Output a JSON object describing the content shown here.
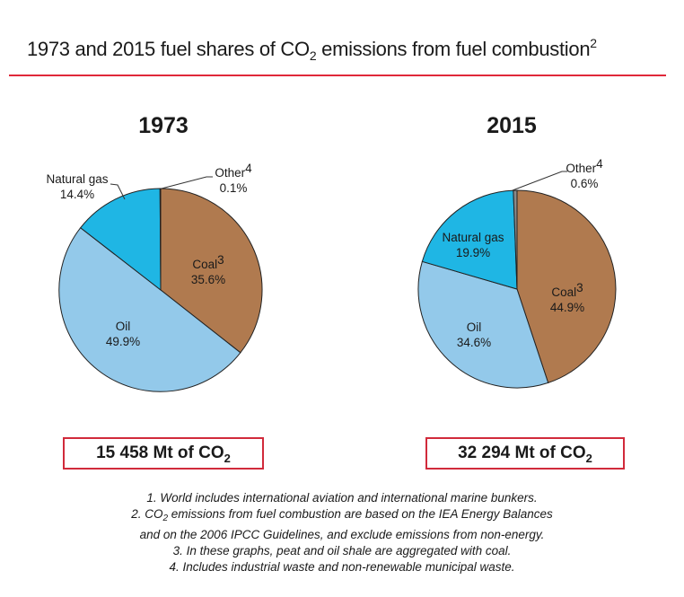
{
  "header": {
    "title_pre": "1973 and 2015 fuel shares of CO",
    "title_sub": "2",
    "title_post": " emissions from fuel combustion",
    "title_sup": "2"
  },
  "chart_data": [
    {
      "type": "pie",
      "title": "1973",
      "slices": [
        {
          "label": "Coal",
          "label_sup": "3",
          "value": 35.6,
          "value_label": "35.6%",
          "color": "#b07a4f"
        },
        {
          "label": "Oil",
          "label_sup": "",
          "value": 49.9,
          "value_label": "49.9%",
          "color": "#93c9ea"
        },
        {
          "label": "Natural gas",
          "label_sup": "",
          "value": 14.4,
          "value_label": "14.4%",
          "color": "#1fb6e4"
        },
        {
          "label": "Other",
          "label_sup": "4",
          "value": 0.1,
          "value_label": "0.1%",
          "color": "#8a8a8a"
        }
      ],
      "total": {
        "pre": "15 458 Mt of CO",
        "sub": "2"
      }
    },
    {
      "type": "pie",
      "title": "2015",
      "slices": [
        {
          "label": "Coal",
          "label_sup": "3",
          "value": 44.9,
          "value_label": "44.9%",
          "color": "#b07a4f"
        },
        {
          "label": "Oil",
          "label_sup": "",
          "value": 34.6,
          "value_label": "34.6%",
          "color": "#93c9ea"
        },
        {
          "label": "Natural gas",
          "label_sup": "",
          "value": 19.9,
          "value_label": "19.9%",
          "color": "#1fb6e4"
        },
        {
          "label": "Other",
          "label_sup": "4",
          "value": 0.6,
          "value_label": "0.6%",
          "color": "#8a8a8a"
        }
      ],
      "total": {
        "pre": "32 294 Mt of CO",
        "sub": "2"
      }
    }
  ],
  "notes": {
    "n1": "1. World includes international aviation and international marine bunkers.",
    "n2_pre": "2. CO",
    "n2_sub": "2",
    "n2_post": " emissions from fuel combustion are based on the IEA Energy Balances",
    "n2_line2": "and on the 2006 IPCC Guidelines, and exclude emissions from non-energy.",
    "n3": "3. In these graphs, peat and oil shale are aggregated with coal.",
    "n4": "4. Includes industrial waste and non-renewable municipal waste."
  }
}
